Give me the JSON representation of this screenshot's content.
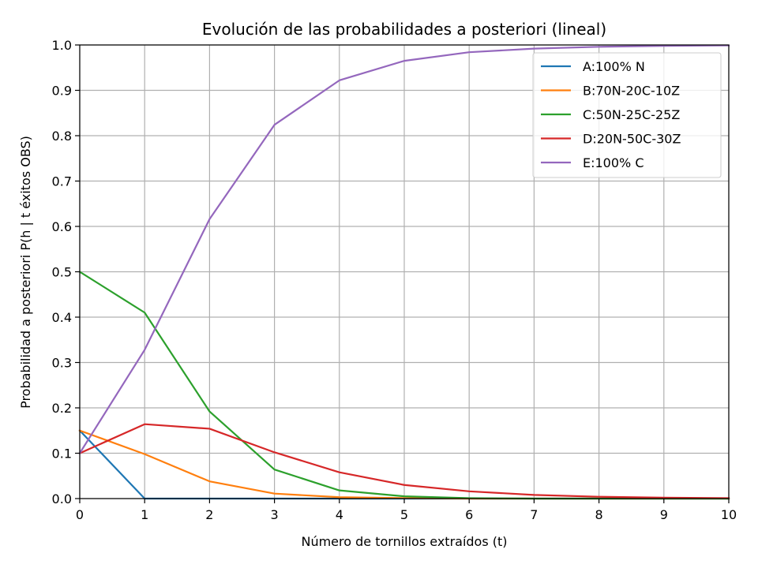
{
  "chart_data": {
    "type": "line",
    "title": "Evolución de las probabilidades a posteriori (lineal)",
    "xlabel": "Número de tornillos extraídos (t)",
    "ylabel": "Probabilidad a posteriori P(h | t éxitos OBS)",
    "x": [
      0,
      1,
      2,
      3,
      4,
      5,
      6,
      7,
      8,
      9,
      10
    ],
    "xlim": [
      0,
      10
    ],
    "ylim": [
      0,
      1.0
    ],
    "xticks": [
      "0",
      "1",
      "2",
      "3",
      "4",
      "5",
      "6",
      "7",
      "8",
      "9",
      "10"
    ],
    "yticks": [
      "0.0",
      "0.1",
      "0.2",
      "0.3",
      "0.4",
      "0.5",
      "0.6",
      "0.7",
      "0.8",
      "0.9",
      "1.0"
    ],
    "grid": true,
    "legend_position": "top-right",
    "series": [
      {
        "name": "A:100% N",
        "color": "#1f77b4",
        "values": [
          0.15,
          0.0,
          0.0,
          0.0,
          0.0,
          0.0,
          0.0,
          0.0,
          0.0,
          0.0,
          0.0
        ]
      },
      {
        "name": "B:70N-20C-10Z",
        "color": "#ff7f0e",
        "values": [
          0.15,
          0.098,
          0.038,
          0.011,
          0.003,
          0.001,
          0.0,
          0.0,
          0.0,
          0.0,
          0.0
        ]
      },
      {
        "name": "C:50N-25C-25Z",
        "color": "#2ca02c",
        "values": [
          0.5,
          0.41,
          0.192,
          0.064,
          0.018,
          0.005,
          0.001,
          0.0,
          0.0,
          0.0,
          0.0
        ]
      },
      {
        "name": "D:20N-50C-30Z",
        "color": "#d62728",
        "values": [
          0.1,
          0.164,
          0.154,
          0.102,
          0.058,
          0.03,
          0.016,
          0.008,
          0.004,
          0.002,
          0.001
        ]
      },
      {
        "name": "E:100% C",
        "color": "#9467bd",
        "values": [
          0.1,
          0.328,
          0.616,
          0.824,
          0.922,
          0.965,
          0.984,
          0.992,
          0.996,
          0.998,
          0.999
        ]
      }
    ]
  }
}
